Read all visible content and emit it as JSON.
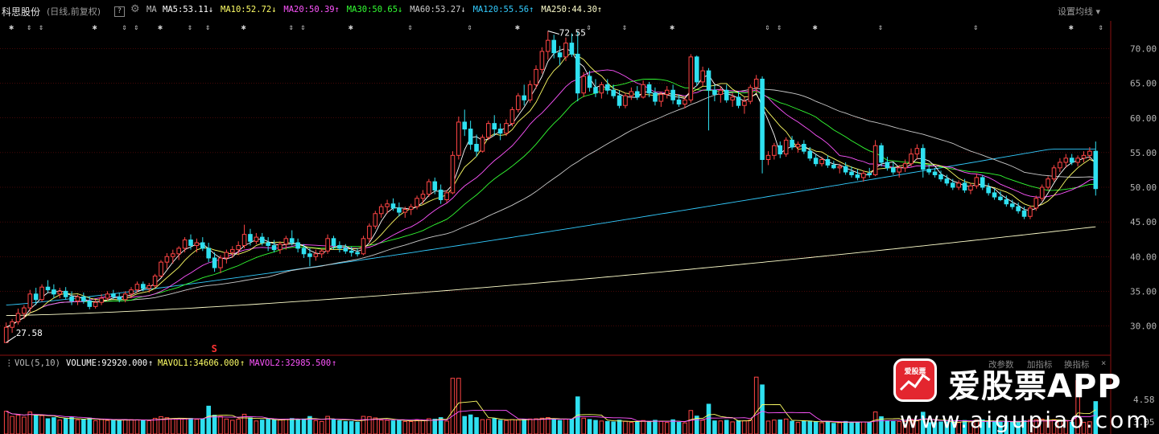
{
  "header": {
    "stock_name": "科思股份",
    "period": "(日线,前复权)",
    "help_icon": "?",
    "settings_icon": "gear-icon",
    "ma_prefix": "MA",
    "settings_link": "设置均线"
  },
  "ma_labels": [
    {
      "name": "MA5",
      "value": "53.11",
      "arrow": "↓",
      "color": "#ffffff"
    },
    {
      "name": "MA10",
      "value": "52.72",
      "arrow": "↓",
      "color": "#ffff66"
    },
    {
      "name": "MA20",
      "value": "50.39",
      "arrow": "↑",
      "color": "#ff55ff"
    },
    {
      "name": "MA30",
      "value": "50.65",
      "arrow": "↓",
      "color": "#33ff33"
    },
    {
      "name": "MA60",
      "value": "53.27",
      "arrow": "↓",
      "color": "#cccccc"
    },
    {
      "name": "MA120",
      "value": "55.56",
      "arrow": "↑",
      "color": "#33ccff"
    },
    {
      "name": "MA250",
      "value": "44.30",
      "arrow": "↑",
      "color": "#ffffcc"
    }
  ],
  "volume_header": {
    "label": "VOL(5,10)",
    "volume": "VOLUME:92920.000",
    "volume_arrow": "↑",
    "mavol1": "MAVOL1:34606.000",
    "mavol1_arrow": "↑",
    "mavol2": "MAVOL2:32985.500",
    "mavol2_arrow": "↑",
    "buttons": [
      "改参数",
      "加指标",
      "换指标"
    ],
    "close_icon": "×"
  },
  "colors": {
    "up": "#ff4545",
    "down": "#2fe0f0",
    "ma5": "#ffffff",
    "ma10": "#ffff66",
    "ma20": "#ff55ff",
    "ma30": "#33ff33",
    "ma60": "#cccccc",
    "ma120": "#33ccff",
    "ma250": "#ffffcc",
    "axis_grid": "#8a1010"
  },
  "chart_data": {
    "type": "candlestick",
    "ylim": [
      26,
      74
    ],
    "y_ticks": [
      "70.00",
      "65.00",
      "60.00",
      "55.00",
      "50.00",
      "45.00",
      "40.00",
      "35.00",
      "30.00"
    ],
    "annotations": [
      "72.55",
      "27.58"
    ],
    "event_marker": "S",
    "volume_y_ticks": [
      "4.58",
      "3.05"
    ],
    "candles": [
      [
        27.6,
        30.5,
        27.6,
        29.8
      ],
      [
        29.8,
        31.0,
        29.0,
        30.6
      ],
      [
        30.6,
        32.5,
        30.2,
        31.8
      ],
      [
        31.8,
        33.0,
        31.0,
        32.6
      ],
      [
        32.6,
        35.2,
        32.0,
        34.6
      ],
      [
        34.6,
        35.5,
        33.0,
        33.8
      ],
      [
        33.8,
        36.0,
        33.5,
        35.6
      ],
      [
        35.6,
        36.6,
        34.8,
        35.2
      ],
      [
        35.2,
        36.0,
        34.0,
        34.6
      ],
      [
        34.6,
        35.5,
        34.0,
        35.0
      ],
      [
        35.0,
        35.6,
        33.8,
        34.2
      ],
      [
        34.2,
        35.0,
        33.0,
        33.6
      ],
      [
        33.6,
        34.5,
        33.0,
        34.2
      ],
      [
        34.2,
        34.8,
        33.2,
        33.6
      ],
      [
        33.6,
        34.2,
        32.4,
        32.8
      ],
      [
        32.8,
        33.8,
        32.5,
        33.4
      ],
      [
        33.4,
        34.6,
        33.0,
        34.0
      ],
      [
        34.0,
        35.0,
        33.6,
        34.6
      ],
      [
        34.6,
        35.2,
        33.8,
        34.2
      ],
      [
        34.2,
        34.8,
        33.4,
        33.8
      ],
      [
        33.8,
        35.0,
        33.4,
        34.6
      ],
      [
        34.6,
        35.6,
        34.0,
        35.2
      ],
      [
        35.2,
        36.4,
        34.8,
        36.0
      ],
      [
        36.0,
        36.4,
        35.0,
        35.4
      ],
      [
        35.4,
        36.2,
        34.8,
        35.8
      ],
      [
        35.8,
        37.5,
        35.5,
        37.2
      ],
      [
        37.2,
        39.5,
        37.0,
        39.2
      ],
      [
        39.2,
        40.5,
        38.2,
        40.0
      ],
      [
        40.0,
        41.0,
        39.0,
        40.4
      ],
      [
        40.4,
        41.5,
        39.5,
        41.2
      ],
      [
        41.2,
        42.8,
        40.6,
        42.4
      ],
      [
        42.4,
        43.2,
        41.0,
        41.6
      ],
      [
        41.6,
        42.6,
        40.6,
        42.0
      ],
      [
        42.0,
        42.8,
        40.8,
        41.2
      ],
      [
        41.2,
        42.0,
        39.2,
        39.8
      ],
      [
        39.8,
        40.6,
        37.8,
        38.4
      ],
      [
        38.4,
        40.2,
        37.6,
        39.8
      ],
      [
        39.8,
        41.0,
        39.0,
        40.6
      ],
      [
        40.6,
        41.5,
        39.8,
        41.0
      ],
      [
        41.0,
        42.2,
        40.2,
        41.6
      ],
      [
        41.6,
        44.6,
        41.2,
        43.2
      ],
      [
        43.2,
        44.0,
        41.6,
        42.2
      ],
      [
        42.2,
        43.4,
        41.8,
        42.8
      ],
      [
        42.8,
        43.4,
        41.6,
        42.0
      ],
      [
        42.0,
        42.8,
        40.8,
        41.6
      ],
      [
        41.6,
        42.4,
        40.6,
        41.0
      ],
      [
        41.0,
        42.2,
        40.4,
        41.8
      ],
      [
        41.8,
        43.0,
        41.0,
        42.6
      ],
      [
        42.6,
        43.8,
        41.6,
        42.0
      ],
      [
        42.0,
        42.6,
        40.6,
        41.2
      ],
      [
        41.2,
        41.8,
        39.8,
        40.4
      ],
      [
        40.4,
        41.2,
        38.6,
        40.0
      ],
      [
        40.0,
        41.0,
        39.4,
        40.4
      ],
      [
        40.4,
        41.2,
        39.8,
        40.8
      ],
      [
        40.8,
        43.2,
        40.4,
        42.6
      ],
      [
        42.6,
        43.0,
        41.0,
        41.6
      ],
      [
        41.6,
        42.2,
        40.6,
        41.2
      ],
      [
        41.2,
        41.8,
        40.4,
        40.8
      ],
      [
        40.8,
        41.4,
        40.0,
        40.6
      ],
      [
        40.6,
        41.2,
        40.0,
        40.4
      ],
      [
        40.4,
        43.0,
        40.2,
        42.6
      ],
      [
        42.6,
        44.8,
        42.0,
        44.4
      ],
      [
        44.4,
        46.6,
        44.0,
        46.2
      ],
      [
        46.2,
        47.6,
        45.6,
        47.2
      ],
      [
        47.2,
        48.2,
        46.2,
        47.6
      ],
      [
        47.6,
        48.4,
        46.6,
        47.0
      ],
      [
        47.0,
        47.8,
        45.8,
        46.4
      ],
      [
        46.4,
        47.2,
        45.6,
        46.8
      ],
      [
        46.8,
        47.6,
        46.0,
        47.2
      ],
      [
        47.2,
        48.8,
        46.8,
        48.4
      ],
      [
        48.4,
        49.6,
        47.6,
        49.0
      ],
      [
        49.0,
        51.2,
        48.6,
        50.8
      ],
      [
        50.8,
        51.4,
        49.0,
        49.6
      ],
      [
        49.6,
        50.4,
        47.6,
        48.2
      ],
      [
        48.2,
        49.6,
        47.8,
        49.2
      ],
      [
        49.2,
        55.2,
        49.0,
        54.6
      ],
      [
        54.6,
        60.2,
        54.0,
        59.4
      ],
      [
        59.4,
        61.2,
        57.4,
        58.4
      ],
      [
        58.4,
        59.6,
        55.4,
        56.2
      ],
      [
        56.2,
        57.6,
        54.4,
        55.2
      ],
      [
        55.2,
        57.6,
        55.0,
        57.2
      ],
      [
        57.2,
        59.6,
        56.8,
        59.2
      ],
      [
        59.2,
        60.4,
        57.4,
        58.4
      ],
      [
        58.4,
        59.2,
        56.8,
        57.8
      ],
      [
        57.8,
        59.8,
        57.4,
        59.2
      ],
      [
        59.2,
        61.6,
        58.8,
        61.2
      ],
      [
        61.2,
        63.6,
        60.8,
        63.2
      ],
      [
        63.2,
        64.8,
        61.8,
        62.6
      ],
      [
        62.6,
        65.4,
        62.2,
        64.8
      ],
      [
        64.8,
        67.6,
        64.2,
        67.0
      ],
      [
        67.0,
        70.2,
        66.4,
        69.6
      ],
      [
        69.6,
        72.55,
        68.4,
        71.2
      ],
      [
        71.2,
        72.0,
        68.6,
        69.4
      ],
      [
        69.4,
        70.4,
        67.6,
        68.8
      ],
      [
        68.8,
        71.6,
        68.2,
        70.8
      ],
      [
        70.8,
        72.2,
        68.8,
        69.2
      ],
      [
        69.2,
        72.5,
        62.4,
        63.6
      ],
      [
        63.6,
        66.6,
        63.0,
        66.0
      ],
      [
        66.0,
        66.8,
        63.8,
        64.4
      ],
      [
        64.4,
        65.6,
        63.0,
        63.6
      ],
      [
        63.6,
        65.2,
        62.8,
        64.8
      ],
      [
        64.8,
        65.6,
        63.4,
        64.0
      ],
      [
        64.0,
        64.8,
        62.8,
        63.2
      ],
      [
        63.2,
        64.0,
        61.4,
        61.8
      ],
      [
        61.8,
        63.6,
        61.4,
        63.2
      ],
      [
        63.2,
        64.4,
        62.6,
        63.8
      ],
      [
        63.8,
        64.6,
        62.6,
        63.0
      ],
      [
        63.0,
        65.4,
        62.8,
        64.8
      ],
      [
        64.8,
        65.2,
        63.0,
        63.6
      ],
      [
        63.6,
        64.4,
        61.8,
        62.4
      ],
      [
        62.4,
        63.8,
        61.6,
        63.4
      ],
      [
        63.4,
        64.6,
        62.8,
        64.0
      ],
      [
        64.0,
        64.8,
        62.0,
        62.6
      ],
      [
        62.6,
        63.4,
        61.6,
        62.0
      ],
      [
        62.0,
        63.0,
        61.4,
        62.6
      ],
      [
        62.6,
        69.2,
        62.2,
        68.8
      ],
      [
        68.8,
        69.0,
        64.6,
        65.2
      ],
      [
        65.2,
        67.4,
        64.6,
        66.8
      ],
      [
        66.8,
        67.2,
        58.2,
        64.0
      ],
      [
        64.0,
        64.8,
        62.4,
        63.4
      ],
      [
        63.4,
        64.6,
        62.2,
        64.0
      ],
      [
        64.0,
        64.8,
        62.2,
        62.6
      ],
      [
        62.6,
        63.6,
        61.6,
        63.0
      ],
      [
        63.0,
        63.8,
        61.4,
        61.8
      ],
      [
        61.8,
        63.0,
        60.6,
        62.4
      ],
      [
        62.4,
        64.8,
        62.0,
        64.4
      ],
      [
        64.4,
        66.2,
        63.6,
        65.6
      ],
      [
        65.6,
        66.0,
        52.0,
        54.0
      ],
      [
        54.0,
        55.2,
        53.2,
        54.6
      ],
      [
        54.6,
        56.4,
        54.0,
        56.0
      ],
      [
        56.0,
        56.6,
        54.2,
        54.8
      ],
      [
        54.8,
        57.2,
        54.4,
        56.8
      ],
      [
        56.8,
        57.4,
        55.4,
        55.8
      ],
      [
        55.8,
        56.6,
        55.0,
        56.2
      ],
      [
        56.2,
        56.8,
        54.8,
        55.2
      ],
      [
        55.2,
        55.8,
        53.8,
        54.2
      ],
      [
        54.2,
        54.8,
        53.0,
        53.4
      ],
      [
        53.4,
        54.4,
        53.0,
        54.0
      ],
      [
        54.0,
        54.6,
        52.8,
        53.2
      ],
      [
        53.2,
        53.8,
        52.6,
        52.8
      ],
      [
        52.8,
        53.4,
        52.0,
        53.0
      ],
      [
        53.0,
        53.6,
        51.8,
        52.2
      ],
      [
        52.2,
        53.0,
        51.4,
        51.8
      ],
      [
        51.8,
        52.6,
        51.0,
        51.4
      ],
      [
        51.4,
        52.4,
        50.8,
        52.0
      ],
      [
        52.0,
        52.8,
        51.4,
        51.8
      ],
      [
        51.8,
        56.8,
        51.6,
        56.0
      ],
      [
        56.0,
        56.4,
        53.0,
        53.6
      ],
      [
        53.6,
        54.4,
        52.4,
        52.8
      ],
      [
        52.8,
        53.6,
        51.8,
        52.2
      ],
      [
        52.2,
        53.2,
        51.4,
        52.8
      ],
      [
        52.8,
        54.0,
        52.2,
        53.4
      ],
      [
        53.4,
        55.6,
        53.0,
        54.8
      ],
      [
        54.8,
        56.2,
        54.0,
        55.6
      ],
      [
        55.6,
        56.2,
        51.4,
        52.6
      ],
      [
        52.6,
        53.2,
        51.8,
        52.2
      ],
      [
        52.2,
        52.8,
        51.4,
        51.8
      ],
      [
        51.8,
        52.4,
        50.8,
        51.2
      ],
      [
        51.2,
        51.8,
        50.2,
        50.6
      ],
      [
        50.6,
        51.2,
        49.6,
        50.0
      ],
      [
        50.0,
        51.0,
        49.6,
        50.6
      ],
      [
        50.6,
        51.2,
        49.2,
        49.6
      ],
      [
        49.6,
        50.6,
        49.0,
        50.2
      ],
      [
        50.2,
        52.0,
        49.8,
        51.4
      ],
      [
        51.4,
        51.8,
        49.6,
        50.0
      ],
      [
        50.0,
        50.6,
        48.8,
        49.2
      ],
      [
        49.2,
        49.8,
        48.2,
        48.6
      ],
      [
        48.6,
        49.4,
        48.0,
        48.2
      ],
      [
        48.2,
        48.8,
        47.2,
        47.6
      ],
      [
        47.6,
        48.2,
        46.8,
        47.2
      ],
      [
        47.2,
        47.8,
        46.2,
        46.6
      ],
      [
        46.6,
        47.2,
        45.4,
        45.8
      ],
      [
        45.8,
        47.4,
        45.4,
        47.0
      ],
      [
        47.0,
        48.8,
        46.6,
        48.4
      ],
      [
        48.4,
        50.4,
        48.0,
        50.0
      ],
      [
        50.0,
        51.6,
        49.6,
        51.2
      ],
      [
        51.2,
        53.2,
        50.8,
        52.8
      ],
      [
        52.8,
        54.2,
        52.2,
        53.6
      ],
      [
        53.6,
        54.8,
        52.8,
        54.2
      ],
      [
        54.2,
        54.8,
        53.2,
        53.6
      ],
      [
        53.6,
        54.6,
        53.0,
        54.2
      ],
      [
        54.2,
        55.2,
        53.6,
        54.6
      ],
      [
        54.6,
        55.8,
        54.0,
        55.2
      ],
      [
        55.2,
        56.6,
        48.8,
        49.8
      ]
    ]
  }
}
